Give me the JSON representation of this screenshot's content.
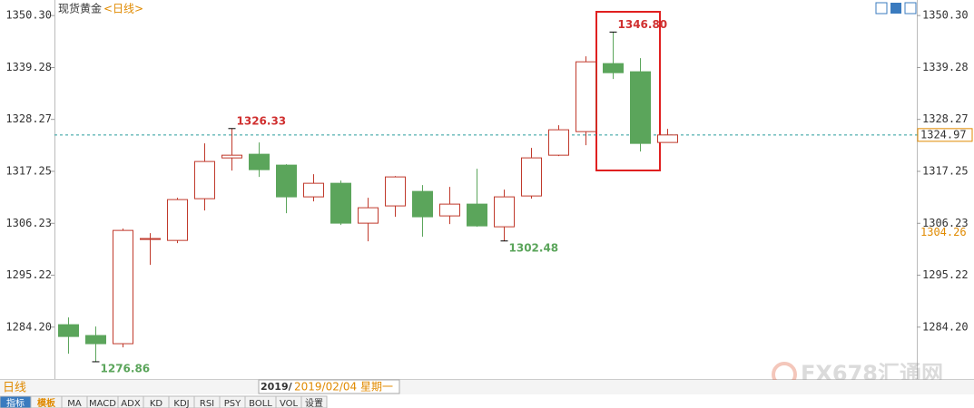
{
  "chart_data": {
    "type": "candlestick",
    "title": "现货黄金",
    "subtitle": "<日线>",
    "period_label": "日线",
    "date_fragment": "2019/",
    "crosshair_label": "2019/02/04 星期一",
    "tabs": [
      "指标",
      "模板",
      "MA",
      "MACD",
      "ADX",
      "KD",
      "KDJ",
      "RSI",
      "PSY",
      "BOLL",
      "VOL",
      "设置"
    ],
    "watermark": "FX678汇通网",
    "up_color": "#c0392b",
    "down_color": "#5ba55b",
    "open": [
      1284.72,
      1282.42,
      1280.69,
      1302.8,
      1302.6,
      1311.45,
      1320.1,
      1320.88,
      1318.57,
      1311.84,
      1314.72,
      1306.26,
      1309.92,
      1312.99,
      1307.8,
      1310.3,
      1305.49,
      1312.03,
      1320.68,
      1325.68,
      1340.11,
      1338.38,
      1323.38
    ],
    "high": [
      1286.26,
      1284.34,
      1305.11,
      1304.15,
      1311.65,
      1323.18,
      1326.33,
      1323.38,
      1318.76,
      1316.65,
      1315.3,
      1311.65,
      1316.26,
      1314.34,
      1313.95,
      1317.8,
      1313.38,
      1322.22,
      1327.03,
      1341.65,
      1346.8,
      1341.26,
      1326.26
    ],
    "low": [
      1278.57,
      1276.86,
      1279.92,
      1297.4,
      1302.03,
      1308.95,
      1317.42,
      1316.07,
      1308.38,
      1310.88,
      1305.88,
      1302.42,
      1307.61,
      1303.38,
      1306.07,
      1305.49,
      1302.48,
      1311.45,
      1320.49,
      1322.8,
      1336.84,
      1321.45,
      1323.38
    ],
    "close": [
      1282.22,
      1280.69,
      1304.72,
      1303.0,
      1311.26,
      1319.34,
      1320.68,
      1317.61,
      1311.84,
      1314.72,
      1306.26,
      1309.53,
      1316.07,
      1307.61,
      1310.3,
      1305.68,
      1311.84,
      1320.11,
      1326.07,
      1340.49,
      1338.18,
      1323.18,
      1324.97
    ],
    "high_labels": [
      null,
      null,
      null,
      null,
      null,
      null,
      "1326.33",
      null,
      null,
      null,
      null,
      null,
      null,
      null,
      null,
      null,
      null,
      null,
      null,
      null,
      "1346.80",
      null,
      null
    ],
    "low_labels": [
      null,
      "1276.86",
      null,
      null,
      null,
      null,
      null,
      null,
      null,
      null,
      null,
      null,
      null,
      null,
      null,
      null,
      "1302.48",
      null,
      null,
      null,
      null,
      null,
      null
    ],
    "last_price": 1324.97,
    "marker_price": 1304.26,
    "ylim": [
      1273.2,
      1353.6
    ],
    "yticks": [
      {
        "value": 1350.3,
        "label": "1350.30"
      },
      {
        "value": 1339.28,
        "label": "1339.28"
      },
      {
        "value": 1328.27,
        "label": "1328.27"
      },
      {
        "value": 1317.25,
        "label": "1317.25"
      },
      {
        "value": 1306.23,
        "label": "1306.23"
      },
      {
        "value": 1295.22,
        "label": "1295.22"
      },
      {
        "value": 1284.2,
        "label": "1284.20"
      }
    ]
  }
}
